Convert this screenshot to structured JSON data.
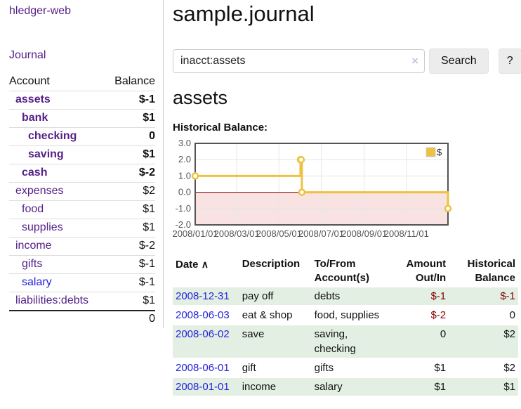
{
  "sidebar": {
    "app_title": "hledger-web",
    "nav": {
      "journal_label": "Journal"
    },
    "accounts_table": {
      "headers": {
        "account": "Account",
        "balance": "Balance"
      },
      "rows": [
        {
          "name": "assets",
          "indent": 1,
          "bold": true,
          "balance": "$-1",
          "neg": "strong"
        },
        {
          "name": "bank",
          "indent": 2,
          "bold": true,
          "balance": "$1"
        },
        {
          "name": "checking",
          "indent": 3,
          "bold": true,
          "balance": "0"
        },
        {
          "name": "saving",
          "indent": 3,
          "bold": true,
          "balance": "$1"
        },
        {
          "name": "cash",
          "indent": 2,
          "bold": true,
          "balance": "$-2",
          "neg": "strong"
        },
        {
          "name": "expenses",
          "indent": 1,
          "bold": false,
          "balance": "$2"
        },
        {
          "name": "food",
          "indent": 2,
          "bold": false,
          "balance": "$1"
        },
        {
          "name": "supplies",
          "indent": 2,
          "bold": false,
          "balance": "$1"
        },
        {
          "name": "income",
          "indent": 1,
          "bold": false,
          "balance": "$-2",
          "neg": "soft"
        },
        {
          "name": "gifts",
          "indent": 2,
          "bold": false,
          "balance": "$-1",
          "neg": "soft"
        },
        {
          "name": "salary",
          "indent": 2,
          "bold": false,
          "balance": "$-1",
          "neg": "soft",
          "link_color": "blue"
        },
        {
          "name": "liabilities:debts",
          "indent": 1,
          "bold": false,
          "balance": "$1"
        }
      ],
      "total": "0"
    }
  },
  "header": {
    "title": "sample.journal",
    "search": {
      "value": "inacct:assets",
      "clear_icon": "×",
      "search_button": "Search",
      "help_button": "?"
    }
  },
  "main": {
    "account_heading": "assets",
    "chart_heading": "Historical Balance:",
    "register_table": {
      "headers": {
        "date": "Date",
        "sort_icon": "∧",
        "description": "Description",
        "accounts": "To/From Account(s)",
        "amount": "Amount Out/In",
        "balance": "Historical Balance"
      },
      "rows": [
        {
          "date": "2008-12-31",
          "description": "pay off",
          "accounts": "debts",
          "amount": "$-1",
          "amount_neg": true,
          "balance": "$-1",
          "balance_neg": true
        },
        {
          "date": "2008-06-03",
          "description": "eat & shop",
          "accounts": "food, supplies",
          "amount": "$-2",
          "amount_neg": true,
          "balance": "0",
          "balance_neg": false
        },
        {
          "date": "2008-06-02",
          "description": "save",
          "accounts": "saving, checking",
          "amount": "0",
          "amount_neg": false,
          "balance": "$2",
          "balance_neg": false
        },
        {
          "date": "2008-06-01",
          "description": "gift",
          "accounts": "gifts",
          "amount": "$1",
          "amount_neg": false,
          "balance": "$2",
          "balance_neg": false
        },
        {
          "date": "2008-01-01",
          "description": "income",
          "accounts": "salary",
          "amount": "$1",
          "amount_neg": false,
          "balance": "$1",
          "balance_neg": false
        }
      ]
    }
  },
  "chart_data": {
    "type": "line",
    "title": "Historical Balance:",
    "legend": [
      {
        "label": "$",
        "color": "#edc240",
        "position": "top-right"
      }
    ],
    "x_domain_days": [
      0,
      365
    ],
    "x_ticks": [
      {
        "day": 0,
        "label": "2008/01/01"
      },
      {
        "day": 60,
        "label": "2008/03/01"
      },
      {
        "day": 121,
        "label": "2008/05/01"
      },
      {
        "day": 182,
        "label": "2008/07/01"
      },
      {
        "day": 244,
        "label": "2008/09/01"
      },
      {
        "day": 305,
        "label": "2008/11/01"
      }
    ],
    "y_ticks": [
      {
        "value": 3,
        "label": "3.0"
      },
      {
        "value": 2,
        "label": "2.0"
      },
      {
        "value": 1,
        "label": "1.0"
      },
      {
        "value": 0,
        "label": "0.0"
      },
      {
        "value": -1,
        "label": "-1.0"
      },
      {
        "value": -2,
        "label": "-2.0"
      }
    ],
    "ylim": [
      -2,
      3
    ],
    "grid": true,
    "series": [
      {
        "name": "$",
        "color": "#edc240",
        "step": true,
        "points": [
          {
            "date": "2008-01-01",
            "day": 0,
            "value": 1
          },
          {
            "date": "2008-06-01",
            "day": 152,
            "value": 2
          },
          {
            "date": "2008-06-02",
            "day": 153,
            "value": 2
          },
          {
            "date": "2008-06-03",
            "day": 154,
            "value": 0
          },
          {
            "date": "2008-12-31",
            "day": 365,
            "value": -1
          }
        ]
      }
    ],
    "negative_region_fill": "#f9e2e2",
    "zero_line_color": "#800000",
    "grid_color": "#e6e6e6",
    "border_color": "#545454",
    "tick_label_color": "#555555"
  },
  "colors": {
    "purple_link": "#552288",
    "blue_link": "#2323dd",
    "negative_strong": "#880000",
    "negative_soft": "#c17d7d",
    "row_green": "#e3efe3",
    "chart_yellow": "#edc240",
    "button_bg": "#ececec"
  }
}
